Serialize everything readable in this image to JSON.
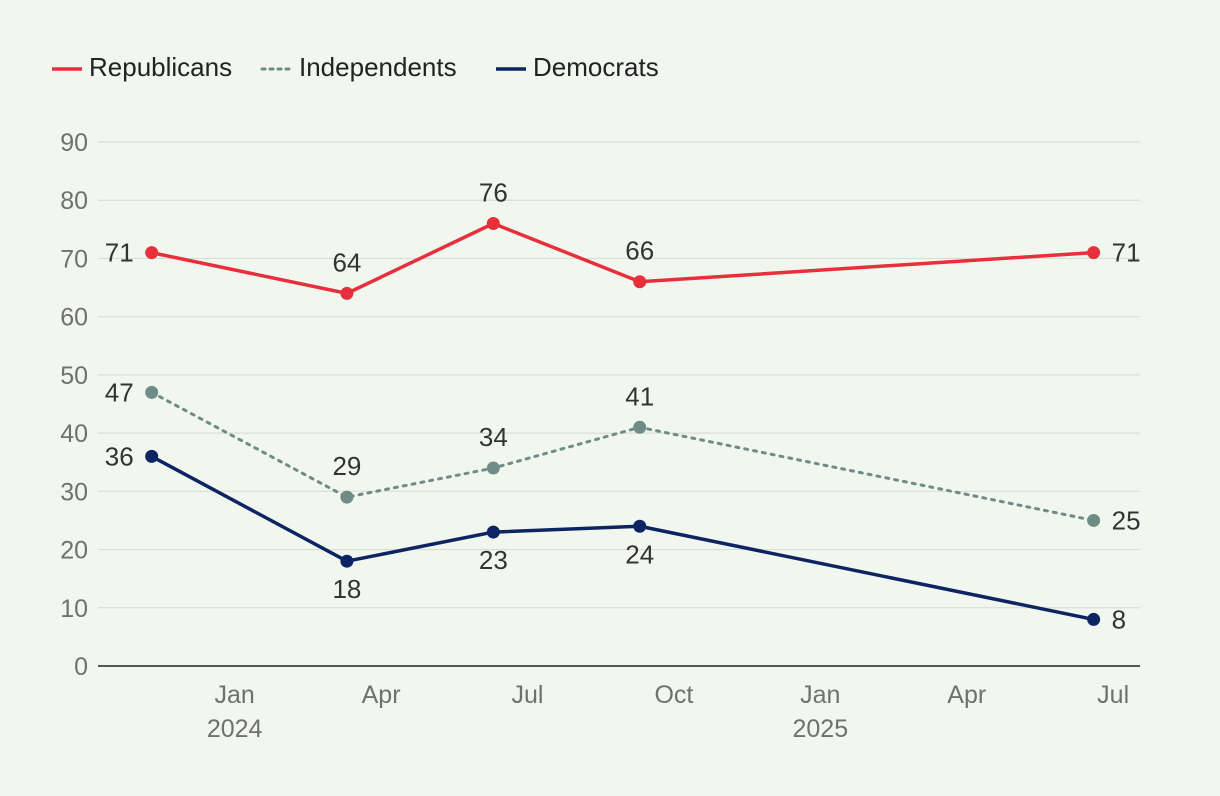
{
  "chart_data": {
    "type": "line",
    "title": "",
    "xlabel": "",
    "ylabel": "",
    "ylim": [
      0,
      90
    ],
    "y_ticks": [
      "0",
      "10",
      "20",
      "30",
      "40",
      "50",
      "60",
      "70",
      "80",
      "90"
    ],
    "x_ticks": [
      {
        "label": "Jan",
        "year": "2024",
        "t": 3
      },
      {
        "label": "Apr",
        "year": "",
        "t": 6
      },
      {
        "label": "Jul",
        "year": "",
        "t": 9
      },
      {
        "label": "Oct",
        "year": "",
        "t": 12
      },
      {
        "label": "Jan",
        "year": "2025",
        "t": 15
      },
      {
        "label": "Apr",
        "year": "",
        "t": 18
      },
      {
        "label": "Jul",
        "year": "",
        "t": 21
      }
    ],
    "x_range": [
      0.2,
      21.55
    ],
    "legend_position": "top-left",
    "grid": true,
    "series": [
      {
        "name": "Republicans",
        "color": "#e8303d",
        "dash": "solid",
        "x": [
          1.3,
          5.3,
          8.3,
          11.3,
          20.6
        ],
        "values": [
          71,
          64,
          76,
          66,
          71
        ],
        "labels": [
          "71",
          "64",
          "76",
          "66",
          "71"
        ],
        "label_pos": [
          "left",
          "above",
          "above",
          "above",
          "right"
        ]
      },
      {
        "name": "Independents",
        "color": "#6f8d86",
        "dash": "dotted",
        "x": [
          1.3,
          5.3,
          8.3,
          11.3,
          20.6
        ],
        "values": [
          47,
          29,
          34,
          41,
          25
        ],
        "labels": [
          "47",
          "29",
          "34",
          "41",
          "25"
        ],
        "label_pos": [
          "left",
          "above",
          "above",
          "above",
          "right"
        ]
      },
      {
        "name": "Democrats",
        "color": "#0c2461",
        "dash": "solid",
        "x": [
          1.3,
          5.3,
          8.3,
          11.3,
          20.6
        ],
        "values": [
          36,
          18,
          23,
          24,
          8
        ],
        "labels": [
          "36",
          "18",
          "23",
          "24",
          "8"
        ],
        "label_pos": [
          "left",
          "below",
          "below",
          "below",
          "right"
        ]
      }
    ]
  }
}
